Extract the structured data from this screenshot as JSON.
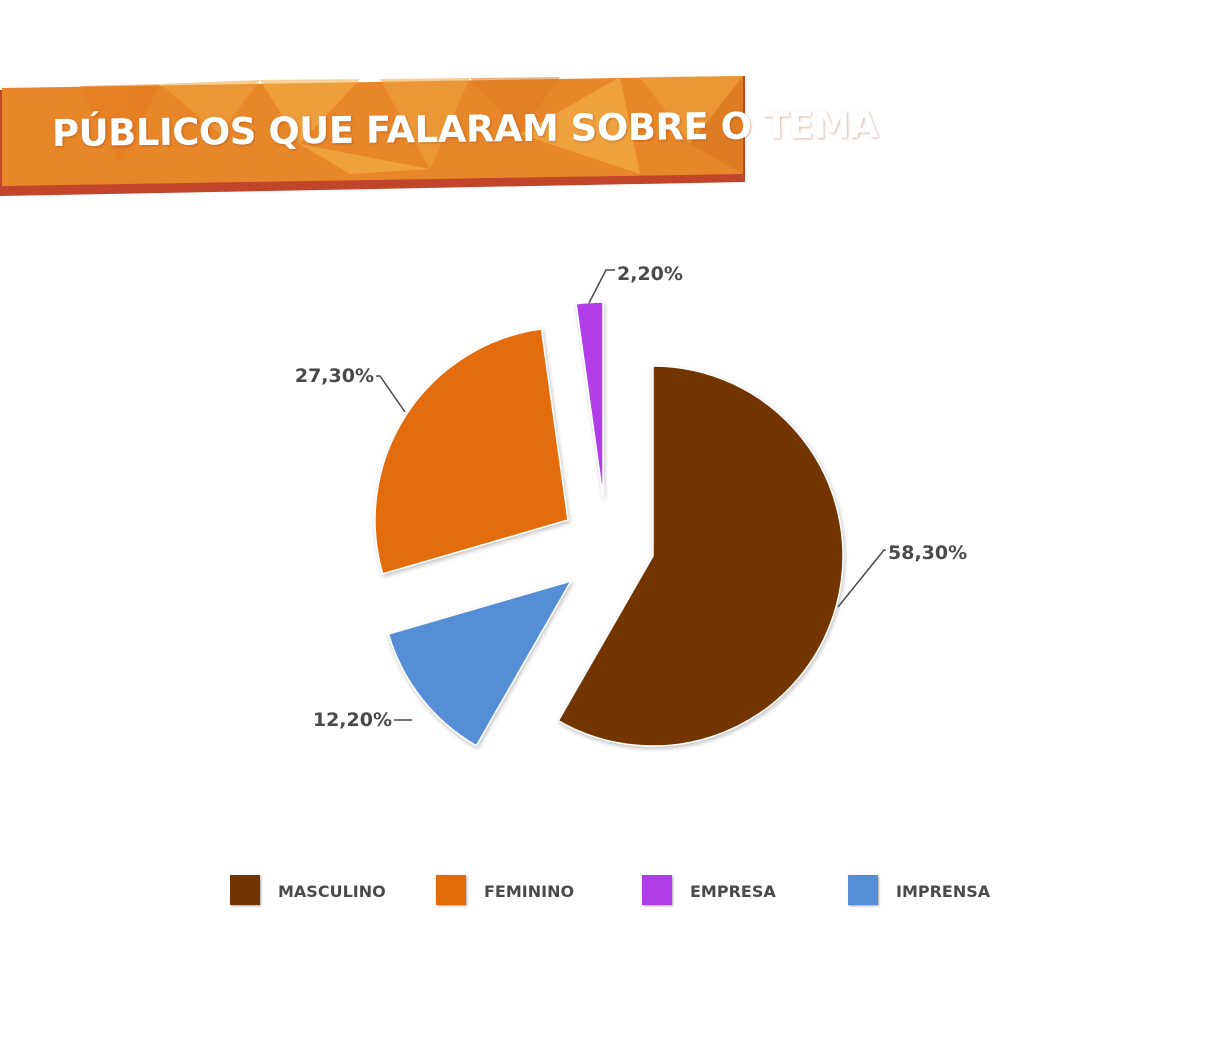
{
  "title": "PÚBLICOS QUE FALARAM SOBRE O TEMA",
  "colors": {
    "banner_main": "#e8862a",
    "banner_light": "#f0a640",
    "banner_shadow": "#c0452a"
  },
  "chart_data": {
    "type": "pie",
    "slices": [
      {
        "label": "MASCULINO",
        "value": 58.3,
        "display": "58,30%",
        "color": "#733404"
      },
      {
        "label": "IMPRENSA",
        "value": 12.2,
        "display": "12,20%",
        "color": "#558ed5"
      },
      {
        "label": "FEMININO",
        "value": 27.3,
        "display": "27,30%",
        "color": "#e36c09"
      },
      {
        "label": "EMPRESA",
        "value": 2.2,
        "display": "2,20%",
        "color": "#b03ee8"
      }
    ],
    "legend": [
      {
        "label": "MASCULINO",
        "color": "#733404"
      },
      {
        "label": "FEMININO",
        "color": "#e36c09"
      },
      {
        "label": "EMPRESA",
        "color": "#b03ee8"
      },
      {
        "label": "IMPRENSA",
        "color": "#558ed5"
      }
    ],
    "legend_position": "bottom",
    "start_angle": "12 o'clock, clockwise",
    "exploded": true
  }
}
